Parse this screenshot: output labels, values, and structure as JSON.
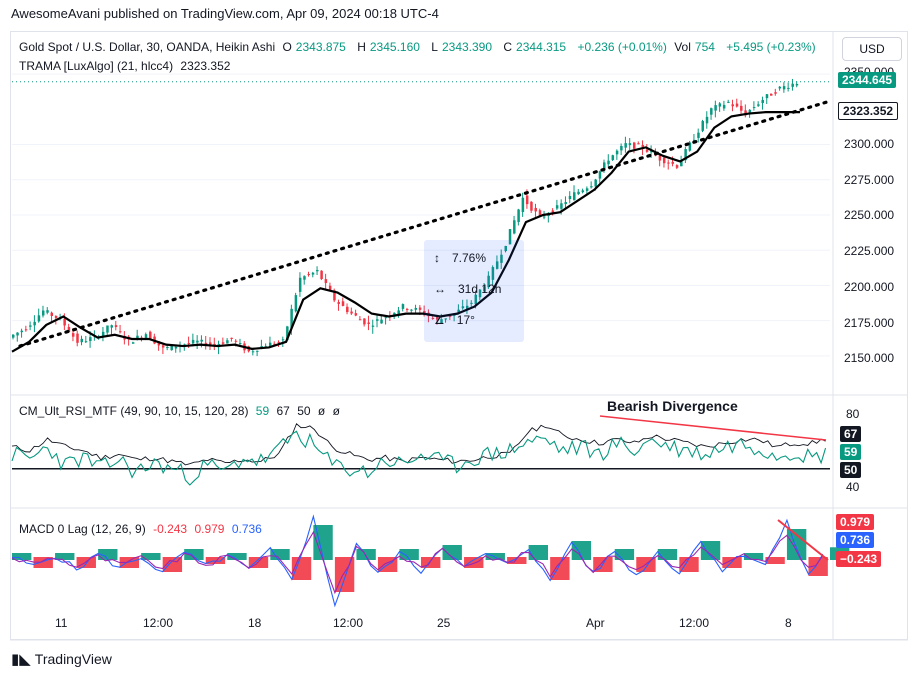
{
  "publisher_line": "AwesomeAvani published on TradingView.com, Apr 09, 2024 00:18 UTC-4",
  "main": {
    "symbol": "Gold Spot / U.S. Dollar, 30, OANDA, Heikin Ashi",
    "open_label": "O",
    "open": "2343.875",
    "high_label": "H",
    "high": "2345.160",
    "low_label": "L",
    "low": "2343.390",
    "close_label": "C",
    "close": "2344.315",
    "change": "+0.236 (+0.01%)",
    "vol_label": "Vol",
    "vol": "754",
    "vol_change": "+5.495 (+0.23%)",
    "indicator": "TRAMA [LuxAlgo] (21, hlcc4)",
    "indicator_value": "2323.352",
    "currency": "USD",
    "price_ticks": [
      "2350.000",
      "2300.000",
      "2275.000",
      "2250.000",
      "2225.000",
      "2200.000",
      "2175.000",
      "2150.000"
    ],
    "last_price_tag": "2344.645",
    "trama_tag": "2323.352"
  },
  "rsi": {
    "label": "CM_Ult_RSI_MTF (49, 90, 10, 15, 120, 28)",
    "values": [
      "59",
      "67",
      "50",
      "ø",
      "ø"
    ],
    "ticks": [
      "80",
      "40"
    ],
    "tags": [
      "67",
      "59",
      "50"
    ],
    "annotation": "Bearish Divergence"
  },
  "macd": {
    "label": "MACD 0 Lag (12, 26, 9)",
    "values": [
      "-0.243",
      "0.979",
      "0.736"
    ],
    "tags": [
      "0.979",
      "0.736",
      "−0.243"
    ]
  },
  "measure": {
    "pct": "7.76%",
    "duration": "31d 12h",
    "angle": "17°"
  },
  "time_axis": [
    "11",
    "12:00",
    "18",
    "12:00",
    "25",
    "Apr",
    "12:00",
    "8"
  ],
  "footer_logo": "TradingView",
  "colors": {
    "up": "#089981",
    "down": "#f23645",
    "trama": "#000000",
    "rsi_fast": "#089981",
    "rsi_slow": "#131722",
    "macd": "#2962ff",
    "signal": "#f23645"
  },
  "chart_data": [
    {
      "type": "candlestick",
      "title": "Gold Spot / U.S. Dollar, 30, OANDA, Heikin Ashi",
      "ylim": [
        2140,
        2360
      ],
      "x": [
        "11",
        "12:00",
        "18",
        "12:00",
        "25",
        "Apr",
        "12:00",
        "8"
      ],
      "close_path": [
        2163,
        2170,
        2182,
        2176,
        2160,
        2163,
        2172,
        2160,
        2166,
        2155,
        2158,
        2160,
        2158,
        2162,
        2153,
        2158,
        2160,
        2205,
        2210,
        2190,
        2180,
        2172,
        2178,
        2185,
        2182,
        2175,
        2180,
        2188,
        2205,
        2230,
        2262,
        2248,
        2255,
        2265,
        2272,
        2290,
        2300,
        2298,
        2290,
        2285,
        2305,
        2325,
        2330,
        2322,
        2332,
        2340,
        2344
      ],
      "trama_path": [
        2153,
        2160,
        2172,
        2178,
        2170,
        2163,
        2165,
        2162,
        2162,
        2158,
        2157,
        2158,
        2157,
        2158,
        2155,
        2156,
        2160,
        2190,
        2198,
        2195,
        2188,
        2180,
        2178,
        2180,
        2180,
        2178,
        2180,
        2185,
        2195,
        2218,
        2245,
        2250,
        2252,
        2260,
        2268,
        2280,
        2295,
        2298,
        2292,
        2288,
        2295,
        2312,
        2320,
        2322,
        2323,
        2323,
        2323
      ],
      "trendline": {
        "from": 2157,
        "to": 2330
      }
    },
    {
      "type": "line",
      "title": "CM_Ult_RSI_MTF (49, 90, 10, 15, 120, 28)",
      "ylim": [
        40,
        80
      ],
      "series": [
        {
          "values": [
            58,
            55,
            62,
            52,
            56,
            50,
            55,
            48,
            53,
            50,
            46,
            52,
            48,
            56,
            54,
            60,
            70,
            62,
            52,
            50,
            48,
            55,
            52,
            58,
            54,
            52,
            56,
            58,
            60,
            65,
            66,
            60,
            62,
            58,
            64,
            60,
            66,
            62,
            60,
            58,
            62,
            64,
            62,
            58,
            60,
            56,
            59
          ]
        },
        {
          "values": [
            62,
            60,
            66,
            62,
            60,
            56,
            58,
            55,
            56,
            54,
            52,
            55,
            53,
            55,
            54,
            58,
            74,
            72,
            62,
            58,
            55,
            56,
            54,
            56,
            55,
            54,
            55,
            57,
            58,
            70,
            74,
            68,
            66,
            64,
            66,
            64,
            68,
            66,
            64,
            62,
            64,
            66,
            66,
            62,
            64,
            64,
            67
          ]
        }
      ],
      "level": 50
    },
    {
      "type": "line",
      "title": "MACD 0 Lag (12, 26, 9)",
      "series": [
        {
          "values": [
            0.2,
            -0.4,
            0.3,
            -0.6,
            0.4,
            -0.5,
            0.2,
            -0.8,
            0.5,
            -0.4,
            0.3,
            -0.6,
            0.6,
            -1.2,
            2.6,
            -2.8,
            1.0,
            -0.9,
            0.5,
            -0.7,
            0.9,
            -0.5,
            0.4,
            -0.3,
            0.8,
            -1.4,
            1.2,
            -0.9,
            0.6,
            -1.0,
            0.5,
            -0.8,
            1.2,
            -0.6,
            0.4,
            -0.3,
            2.3,
            -1.0,
            0.979
          ]
        },
        {
          "values": [
            0.1,
            -0.2,
            0.2,
            -0.4,
            0.2,
            -0.3,
            0.1,
            -0.5,
            0.3,
            -0.3,
            0.2,
            -0.4,
            0.4,
            -0.7,
            1.8,
            -2.0,
            0.8,
            -0.6,
            0.3,
            -0.5,
            0.6,
            -0.3,
            0.3,
            -0.2,
            0.5,
            -0.9,
            0.8,
            -0.6,
            0.4,
            -0.7,
            0.3,
            -0.5,
            0.8,
            -0.4,
            0.3,
            -0.2,
            1.6,
            -0.6,
            0.736
          ]
        }
      ]
    }
  ]
}
